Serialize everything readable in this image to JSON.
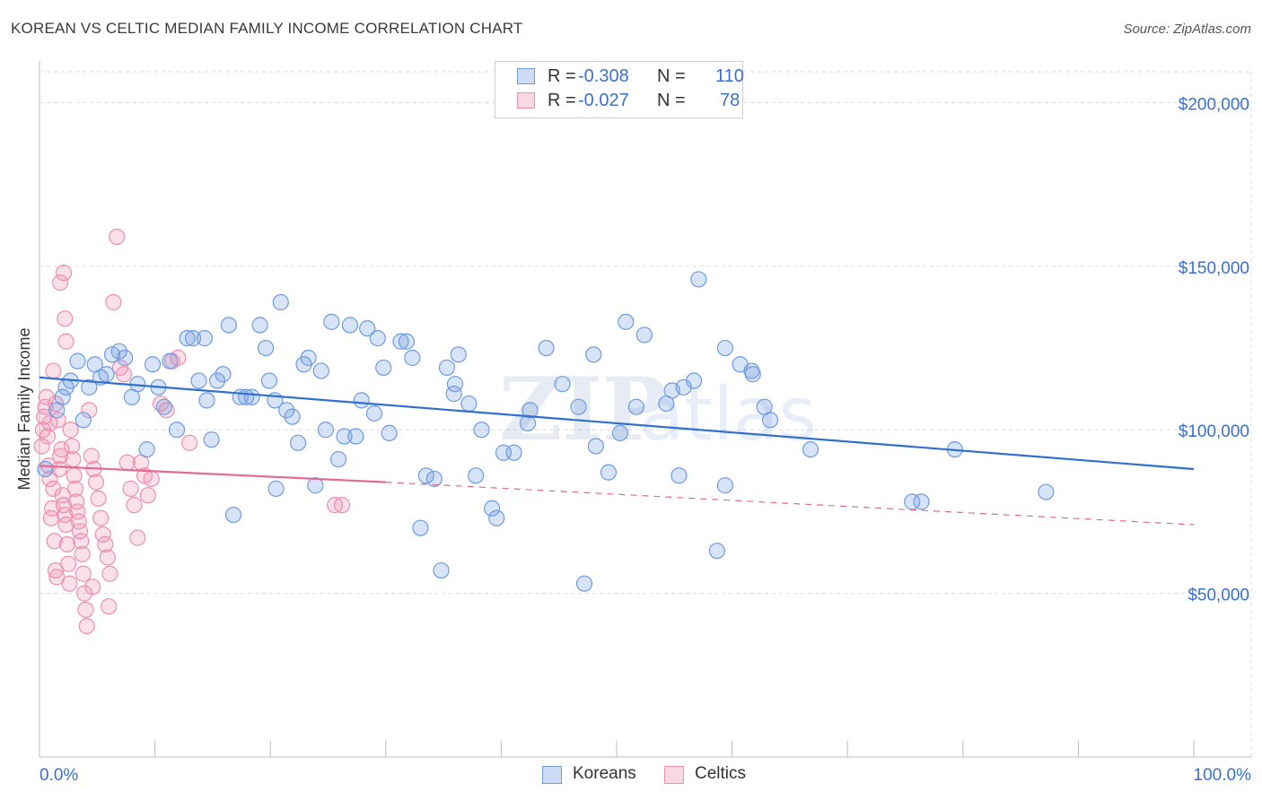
{
  "title": "KOREAN VS CELTIC MEDIAN FAMILY INCOME CORRELATION CHART",
  "source": "Source: ZipAtlas.com",
  "watermark": {
    "zip": "ZIP",
    "atlas": "atlas"
  },
  "legend_top": [
    {
      "r_label": "R =",
      "r_value": "-0.308",
      "n_label": "N =",
      "n_value": "110",
      "color": "#6f9be0"
    },
    {
      "r_label": "R =",
      "r_value": "-0.027",
      "n_label": "N =",
      "n_value": "78",
      "color": "#ee8fb0"
    }
  ],
  "legend_bottom": [
    {
      "label": "Koreans",
      "color": "#6f9be0"
    },
    {
      "label": "Celtics",
      "color": "#ee8fb0"
    }
  ],
  "chart_data": {
    "type": "scatter",
    "title": "KOREAN VS CELTIC MEDIAN FAMILY INCOME CORRELATION CHART",
    "xlabel": "",
    "ylabel": "Median Family Income",
    "xlim": [
      0,
      100
    ],
    "ylim": [
      0,
      210000
    ],
    "x_tick_labels": [
      "0.0%",
      "100.0%"
    ],
    "y_ticks": [
      50000,
      100000,
      150000,
      200000
    ],
    "y_tick_labels": [
      "$50,000",
      "$100,000",
      "$150,000",
      "$200,000"
    ],
    "grid": true,
    "series": [
      {
        "name": "Koreans",
        "color": "#6f9be0",
        "trend": {
          "x": [
            0,
            100
          ],
          "y": [
            116000,
            88000
          ]
        },
        "points": [
          [
            0.5,
            88000
          ],
          [
            1.5,
            106000
          ],
          [
            2,
            110000
          ],
          [
            2.3,
            113000
          ],
          [
            2.7,
            115000
          ],
          [
            3.3,
            121000
          ],
          [
            3.8,
            103000
          ],
          [
            4.3,
            113000
          ],
          [
            4.8,
            120000
          ],
          [
            5.3,
            116000
          ],
          [
            5.8,
            117000
          ],
          [
            6.3,
            123000
          ],
          [
            6.9,
            124000
          ],
          [
            7.4,
            122000
          ],
          [
            8,
            110000
          ],
          [
            8.5,
            114000
          ],
          [
            9.3,
            94000
          ],
          [
            9.8,
            120000
          ],
          [
            10.3,
            113000
          ],
          [
            10.8,
            107000
          ],
          [
            11.3,
            121000
          ],
          [
            11.9,
            100000
          ],
          [
            12.8,
            128000
          ],
          [
            13.3,
            128000
          ],
          [
            13.8,
            115000
          ],
          [
            14.3,
            128000
          ],
          [
            14.9,
            97000
          ],
          [
            15.4,
            115000
          ],
          [
            15.9,
            117000
          ],
          [
            16.4,
            132000
          ],
          [
            16.8,
            74000
          ],
          [
            17.4,
            110000
          ],
          [
            17.9,
            110000
          ],
          [
            18.4,
            110000
          ],
          [
            19.1,
            132000
          ],
          [
            19.6,
            125000
          ],
          [
            19.9,
            115000
          ],
          [
            20.4,
            109000
          ],
          [
            20.9,
            139000
          ],
          [
            21.4,
            106000
          ],
          [
            21.9,
            104000
          ],
          [
            22.4,
            96000
          ],
          [
            22.9,
            120000
          ],
          [
            23.3,
            122000
          ],
          [
            23.9,
            83000
          ],
          [
            24.4,
            118000
          ],
          [
            24.8,
            100000
          ],
          [
            25.3,
            133000
          ],
          [
            25.9,
            91000
          ],
          [
            26.4,
            98000
          ],
          [
            26.9,
            132000
          ],
          [
            27.4,
            98000
          ],
          [
            27.9,
            109000
          ],
          [
            28.4,
            131000
          ],
          [
            29,
            105000
          ],
          [
            29.3,
            128000
          ],
          [
            29.8,
            119000
          ],
          [
            30.3,
            99000
          ],
          [
            31.3,
            127000
          ],
          [
            31.8,
            127000
          ],
          [
            32.3,
            122000
          ],
          [
            33,
            70000
          ],
          [
            33.5,
            86000
          ],
          [
            34.2,
            85000
          ],
          [
            34.8,
            57000
          ],
          [
            35.3,
            119000
          ],
          [
            35.9,
            111000
          ],
          [
            36.3,
            123000
          ],
          [
            37.2,
            108000
          ],
          [
            37.8,
            86000
          ],
          [
            38.3,
            100000
          ],
          [
            39.2,
            76000
          ],
          [
            39.6,
            73000
          ],
          [
            40.2,
            93000
          ],
          [
            41.1,
            93000
          ],
          [
            42.3,
            102000
          ],
          [
            42.5,
            106000
          ],
          [
            43.9,
            125000
          ],
          [
            45.3,
            114000
          ],
          [
            46.7,
            107000
          ],
          [
            47.2,
            53000
          ],
          [
            48,
            123000
          ],
          [
            48.2,
            95000
          ],
          [
            49.3,
            87000
          ],
          [
            50.3,
            99000
          ],
          [
            50.8,
            133000
          ],
          [
            51.7,
            107000
          ],
          [
            52.4,
            129000
          ],
          [
            54.3,
            108000
          ],
          [
            54.8,
            112000
          ],
          [
            55.4,
            86000
          ],
          [
            55.8,
            113000
          ],
          [
            57.1,
            146000
          ],
          [
            58.7,
            63000
          ],
          [
            59.4,
            83000
          ],
          [
            60.7,
            120000
          ],
          [
            61.7,
            118000
          ],
          [
            62.8,
            107000
          ],
          [
            63.3,
            103000
          ],
          [
            66.8,
            94000
          ],
          [
            75.6,
            78000
          ],
          [
            76.4,
            78000
          ],
          [
            79.3,
            94000
          ],
          [
            87.2,
            81000
          ],
          [
            56.7,
            115000
          ],
          [
            61.8,
            117000
          ],
          [
            36,
            114000
          ],
          [
            59.4,
            125000
          ],
          [
            20.5,
            82000
          ],
          [
            14.5,
            109000
          ]
        ]
      },
      {
        "name": "Celtics",
        "color": "#ee8fb0",
        "trend": {
          "x": [
            0,
            30,
            100
          ],
          "y": [
            89000,
            84000,
            71000
          ],
          "solid_until": 30
        },
        "points": [
          [
            0.2,
            95000
          ],
          [
            0.3,
            100000
          ],
          [
            0.4,
            104000
          ],
          [
            0.5,
            107000
          ],
          [
            0.6,
            110000
          ],
          [
            0.7,
            98000
          ],
          [
            0.8,
            89000
          ],
          [
            0.9,
            85000
          ],
          [
            1,
            73000
          ],
          [
            1.1,
            76000
          ],
          [
            1.2,
            82000
          ],
          [
            1.3,
            66000
          ],
          [
            1.4,
            57000
          ],
          [
            1.5,
            55000
          ],
          [
            1.6,
            103000
          ],
          [
            1.7,
            88000
          ],
          [
            1.8,
            92000
          ],
          [
            1.9,
            94000
          ],
          [
            2,
            80000
          ],
          [
            2.1,
            77000
          ],
          [
            2.2,
            74000
          ],
          [
            2.3,
            71000
          ],
          [
            2.4,
            65000
          ],
          [
            2.5,
            59000
          ],
          [
            2.6,
            53000
          ],
          [
            2.7,
            100000
          ],
          [
            2.8,
            95000
          ],
          [
            2.9,
            91000
          ],
          [
            3,
            86000
          ],
          [
            3.1,
            82000
          ],
          [
            3.2,
            78000
          ],
          [
            3.3,
            75000
          ],
          [
            3.4,
            72000
          ],
          [
            3.5,
            69000
          ],
          [
            3.6,
            66000
          ],
          [
            3.7,
            62000
          ],
          [
            3.8,
            56000
          ],
          [
            3.9,
            50000
          ],
          [
            4,
            45000
          ],
          [
            4.1,
            40000
          ],
          [
            4.3,
            106000
          ],
          [
            4.5,
            92000
          ],
          [
            4.7,
            88000
          ],
          [
            4.9,
            84000
          ],
          [
            5.1,
            79000
          ],
          [
            5.3,
            73000
          ],
          [
            5.5,
            68000
          ],
          [
            5.7,
            65000
          ],
          [
            5.9,
            61000
          ],
          [
            6.1,
            56000
          ],
          [
            6.4,
            139000
          ],
          [
            6.7,
            159000
          ],
          [
            7,
            119000
          ],
          [
            7.3,
            117000
          ],
          [
            7.6,
            90000
          ],
          [
            7.9,
            82000
          ],
          [
            8.2,
            77000
          ],
          [
            8.5,
            67000
          ],
          [
            8.8,
            90000
          ],
          [
            9.1,
            86000
          ],
          [
            9.4,
            80000
          ],
          [
            9.7,
            85000
          ],
          [
            10.5,
            108000
          ],
          [
            11,
            106000
          ],
          [
            11.5,
            121000
          ],
          [
            12,
            122000
          ],
          [
            13,
            96000
          ],
          [
            1.8,
            145000
          ],
          [
            2.1,
            148000
          ],
          [
            2.2,
            134000
          ],
          [
            2.3,
            127000
          ],
          [
            1.2,
            118000
          ],
          [
            1.4,
            108000
          ],
          [
            0.9,
            102000
          ],
          [
            25.6,
            77000
          ],
          [
            26.2,
            77000
          ],
          [
            6,
            46000
          ],
          [
            4.6,
            52000
          ]
        ]
      }
    ]
  }
}
